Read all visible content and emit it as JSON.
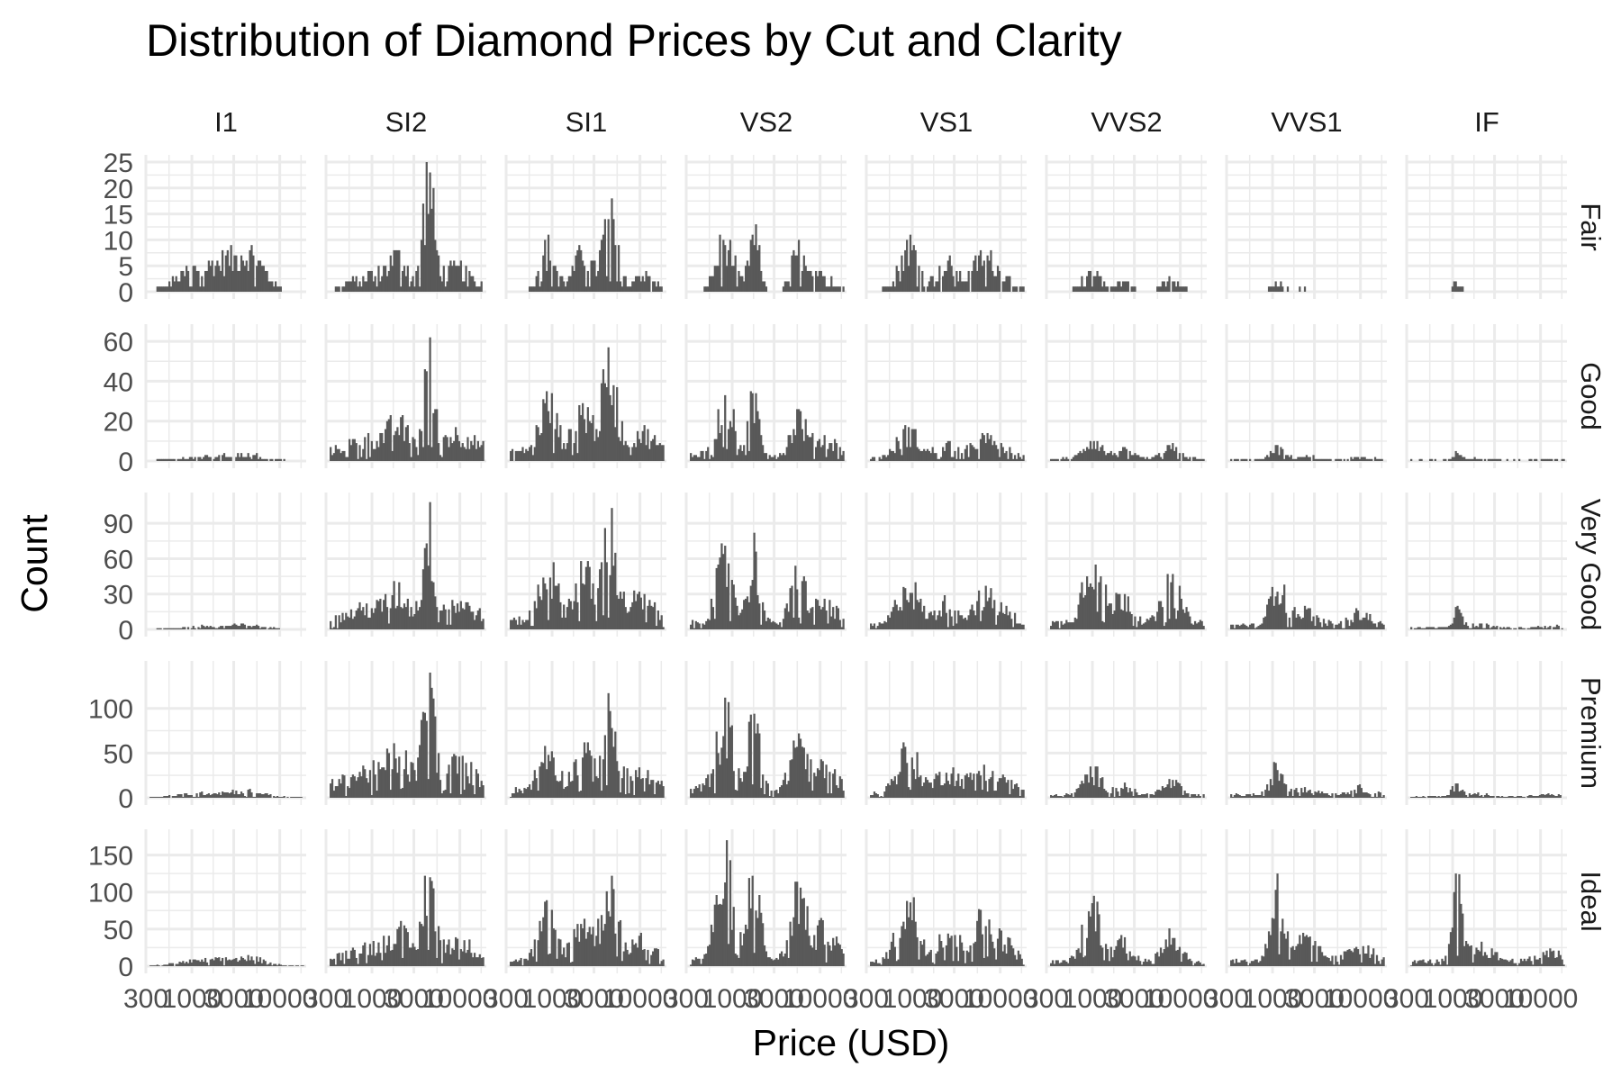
{
  "chart_data": {
    "type": "histogram",
    "title": "Distribution of Diamond Prices by Cut and Clarity",
    "xlabel": "Price (USD)",
    "ylabel": "Count",
    "x_scale": "log10",
    "xlim": [
      300,
      20000
    ],
    "x_tick_labels": [
      "300",
      "1000",
      "3000",
      "10000"
    ],
    "facet_columns": [
      "I1",
      "SI2",
      "SI1",
      "VS2",
      "VS1",
      "VVS2",
      "VVS1",
      "IF"
    ],
    "facet_rows": [
      "Fair",
      "Good",
      "Very Good",
      "Premium",
      "Ideal"
    ],
    "bar_color": "#595959",
    "background_color": "#ffffff",
    "grid_color": "#ebebeb",
    "grid": true,
    "y_axes": [
      {
        "row": "Fair",
        "ylim": [
          0,
          25
        ],
        "ticks": [
          0,
          5,
          10,
          15,
          20,
          25
        ]
      },
      {
        "row": "Good",
        "ylim": [
          0,
          65
        ],
        "ticks": [
          0,
          20,
          40,
          60
        ]
      },
      {
        "row": "Very Good",
        "ylim": [
          0,
          110
        ],
        "ticks": [
          0,
          30,
          60,
          90
        ]
      },
      {
        "row": "Premium",
        "ylim": [
          0,
          145
        ],
        "ticks": [
          0,
          50,
          100
        ]
      },
      {
        "row": "Ideal",
        "ylim": [
          0,
          175
        ],
        "ticks": [
          0,
          50,
          100,
          150
        ]
      }
    ],
    "panel_peaks": [
      {
        "row": "Fair",
        "counts": [
          9,
          25,
          18,
          13,
          11,
          4,
          2,
          2
        ]
      },
      {
        "row": "Good",
        "counts": [
          4,
          62,
          57,
          35,
          18,
          10,
          8,
          5
        ]
      },
      {
        "row": "Very Good",
        "counts": [
          5,
          108,
          103,
          82,
          40,
          55,
          38,
          20
        ]
      },
      {
        "row": "Premium",
        "counts": [
          10,
          140,
          117,
          112,
          62,
          35,
          40,
          16
        ]
      },
      {
        "row": "Ideal",
        "counts": [
          15,
          122,
          122,
          170,
          93,
          95,
          125,
          125
        ]
      }
    ]
  }
}
